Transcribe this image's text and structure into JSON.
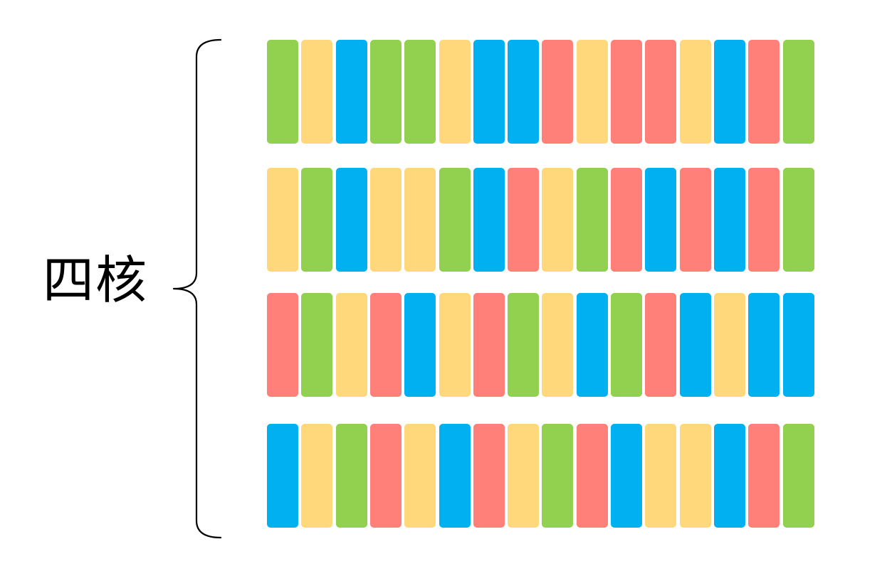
{
  "label": "四核",
  "colors": {
    "green": "#92d050",
    "yellow": "#ffd87c",
    "blue": "#00b0f0",
    "red": "#ff7f79"
  },
  "cores": [
    {
      "tasks": [
        "green",
        "yellow",
        "blue",
        "green",
        "green",
        "yellow",
        "blue",
        "blue",
        "red",
        "yellow",
        "red",
        "red",
        "yellow",
        "blue",
        "red",
        "green"
      ]
    },
    {
      "tasks": [
        "yellow",
        "green",
        "blue",
        "yellow",
        "yellow",
        "green",
        "blue",
        "red",
        "yellow",
        "green",
        "red",
        "blue",
        "red",
        "blue",
        "red",
        "green"
      ]
    },
    {
      "tasks": [
        "red",
        "green",
        "yellow",
        "red",
        "blue",
        "yellow",
        "red",
        "green",
        "yellow",
        "blue",
        "green",
        "red",
        "blue",
        "yellow",
        "blue",
        "blue"
      ]
    },
    {
      "tasks": [
        "blue",
        "yellow",
        "green",
        "red",
        "yellow",
        "blue",
        "red",
        "yellow",
        "green",
        "red",
        "blue",
        "yellow",
        "yellow",
        "blue",
        "red",
        "green"
      ]
    }
  ]
}
